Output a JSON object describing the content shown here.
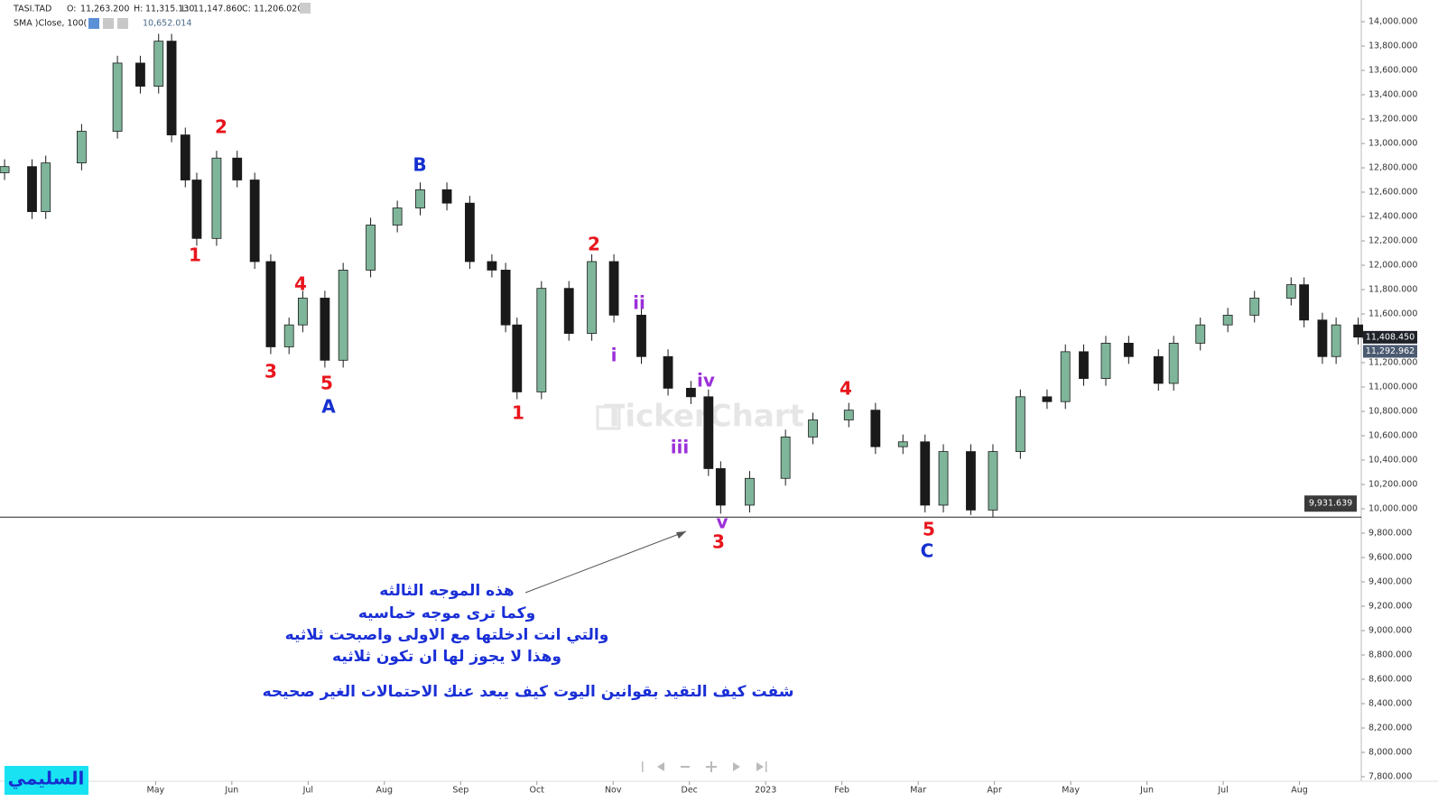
{
  "chart_data": {
    "type": "candlestick",
    "title": "TASI.TAD",
    "ohlc": [
      {
        "key": "O:",
        "label": "11,263.200"
      },
      {
        "key": "H:",
        "label": "11,315.130"
      },
      {
        "key": "L:",
        "label": "11,147.860"
      },
      {
        "key": "C:",
        "label": "11,206.020"
      }
    ],
    "indicator": {
      "name": "SMA )Close, 100(",
      "label": "10,652.014"
    },
    "up_color": "#7fb59a",
    "down_color": "#1a1a1a",
    "x": [
      -0.98,
      -0.62,
      -0.44,
      0.03,
      0.5,
      0.8,
      1.04,
      1.21,
      1.39,
      1.54,
      1.8,
      2.07,
      2.3,
      2.51,
      2.75,
      2.93,
      3.22,
      3.46,
      3.82,
      4.17,
      4.47,
      4.82,
      5.12,
      5.41,
      5.59,
      5.74,
      6.06,
      6.42,
      6.72,
      7.01,
      7.37,
      7.72,
      8.02,
      8.25,
      8.41,
      8.79,
      9.26,
      9.62,
      10.09,
      10.44,
      10.8,
      11.09,
      11.33,
      11.69,
      11.98,
      12.34,
      12.69,
      12.93,
      13.17,
      13.46,
      13.76,
      14.15,
      14.35,
      14.7,
      15.06,
      15.41,
      15.89,
      16.06,
      16.3,
      16.48,
      16.77
    ],
    "open": [
      12760,
      12810,
      12440,
      12840,
      13100,
      13660,
      13470,
      13840,
      13070,
      12700,
      12220,
      12880,
      12700,
      12030,
      11330,
      11510,
      11730,
      11220,
      11960,
      12330,
      12470,
      12620,
      12510,
      12030,
      11960,
      11510,
      10960,
      11810,
      11440,
      12030,
      11590,
      11250,
      10990,
      10920,
      10330,
      10030,
      10250,
      10590,
      10730,
      10810,
      10510,
      10550,
      10030,
      10470,
      9990,
      10470,
      10920,
      10880,
      11290,
      11070,
      11360,
      11250,
      11030,
      11360,
      11510,
      11590,
      11730,
      11840,
      11550,
      11250,
      11510
    ],
    "high": [
      12870,
      12870,
      12900,
      13160,
      13720,
      13720,
      13900,
      13900,
      13130,
      12760,
      12940,
      12940,
      12760,
      12090,
      11570,
      11790,
      11790,
      12020,
      12390,
      12530,
      12680,
      12680,
      12570,
      12090,
      12020,
      11570,
      11870,
      11870,
      12090,
      12090,
      11650,
      11310,
      11050,
      10980,
      10390,
      10310,
      10650,
      10790,
      10870,
      10870,
      10610,
      10610,
      10530,
      10530,
      10530,
      10980,
      10980,
      11350,
      11350,
      11420,
      11420,
      11310,
      11420,
      11570,
      11650,
      11790,
      11900,
      11900,
      11610,
      11570,
      11570
    ],
    "low": [
      12700,
      12380,
      12380,
      12780,
      13040,
      13410,
      13410,
      13010,
      12640,
      12160,
      12160,
      12640,
      11970,
      11270,
      11270,
      11450,
      11160,
      11160,
      11900,
      12270,
      12410,
      12450,
      11970,
      11900,
      11450,
      10900,
      10900,
      11380,
      11380,
      11530,
      11190,
      10930,
      10860,
      10270,
      9960,
      9970,
      10190,
      10530,
      10670,
      10450,
      10450,
      9970,
      9970,
      9950,
      9930,
      10410,
      10820,
      10820,
      11010,
      11010,
      11190,
      10970,
      10970,
      11300,
      11450,
      11530,
      11670,
      11490,
      11190,
      11190,
      11350
    ],
    "close": [
      12810,
      12440,
      12840,
      13100,
      13660,
      13470,
      13840,
      13070,
      12700,
      12220,
      12880,
      12700,
      12030,
      11330,
      11510,
      11730,
      11220,
      11960,
      12330,
      12470,
      12620,
      12510,
      12030,
      11960,
      11510,
      10960,
      11810,
      11440,
      12030,
      11590,
      11250,
      10990,
      10920,
      10330,
      10030,
      10250,
      10590,
      10730,
      10810,
      10510,
      10550,
      10030,
      10470,
      9990,
      10470,
      10920,
      10880,
      11290,
      11070,
      11360,
      11250,
      11030,
      11360,
      11510,
      11590,
      11730,
      11840,
      11550,
      11250,
      11510,
      11410
    ],
    "xlim": [
      -1.04,
      16.81
    ],
    "xticks": [
      {
        "value": 1,
        "label": "May"
      },
      {
        "value": 2,
        "label": "Jun"
      },
      {
        "value": 3,
        "label": "Jul"
      },
      {
        "value": 4,
        "label": "Aug"
      },
      {
        "value": 5,
        "label": "Sep"
      },
      {
        "value": 6,
        "label": "Oct"
      },
      {
        "value": 7,
        "label": "Nov"
      },
      {
        "value": 8,
        "label": "Dec"
      },
      {
        "value": 9,
        "label": "2023"
      },
      {
        "value": 10,
        "label": "Feb"
      },
      {
        "value": 11,
        "label": "Mar"
      },
      {
        "value": 12,
        "label": "Apr"
      },
      {
        "value": 13,
        "label": "May"
      },
      {
        "value": 14,
        "label": "Jun"
      },
      {
        "value": 15,
        "label": "Jul"
      },
      {
        "value": 16,
        "label": "Aug"
      }
    ],
    "ylim": [
      7763,
      14178
    ],
    "yticks": [
      {
        "value": 7800,
        "label": "7,800.000"
      },
      {
        "value": 8000,
        "label": "8,000.000"
      },
      {
        "value": 8200,
        "label": "8,200.000"
      },
      {
        "value": 8400,
        "label": "8,400.000"
      },
      {
        "value": 8600,
        "label": "8,600.000"
      },
      {
        "value": 8800,
        "label": "8,800.000"
      },
      {
        "value": 9000,
        "label": "9,000.000"
      },
      {
        "value": 9200,
        "label": "9,200.000"
      },
      {
        "value": 9400,
        "label": "9,400.000"
      },
      {
        "value": 9600,
        "label": "9,600.000"
      },
      {
        "value": 9800,
        "label": "9,800.000"
      },
      {
        "value": 10000,
        "label": "10,000.000"
      },
      {
        "value": 10200,
        "label": "10,200.000"
      },
      {
        "value": 10400,
        "label": "10,400.000"
      },
      {
        "value": 10600,
        "label": "10,600.000"
      },
      {
        "value": 10800,
        "label": "10,800.000"
      },
      {
        "value": 11000,
        "label": "11,000.000"
      },
      {
        "value": 11200,
        "label": "11,200.000"
      },
      {
        "value": 11400,
        "label": "11,400.000"
      },
      {
        "value": 11600,
        "label": "11,600.000"
      },
      {
        "value": 11800,
        "label": "11,800.000"
      },
      {
        "value": 12000,
        "label": "12,000.000"
      },
      {
        "value": 12200,
        "label": "12,200.000"
      },
      {
        "value": 12400,
        "label": "12,400.000"
      },
      {
        "value": 12600,
        "label": "12,600.000"
      },
      {
        "value": 12800,
        "label": "12,800.000"
      },
      {
        "value": 13000,
        "label": "13,000.000"
      },
      {
        "value": 13200,
        "label": "13,200.000"
      },
      {
        "value": 13400,
        "label": "13,400.000"
      },
      {
        "value": 13600,
        "label": "13,600.000"
      },
      {
        "value": 13800,
        "label": "13,800.000"
      },
      {
        "value": 14000,
        "label": "14,000.000"
      }
    ],
    "price_tags": [
      {
        "value": 11408.45,
        "label": "11,408.450",
        "color": "#1f2329"
      },
      {
        "value": 11292.962,
        "label": "11,292.962",
        "color": "#4b5a70"
      }
    ],
    "hline": {
      "value": 9931.639,
      "label": "9,931.639"
    },
    "wave_labels": [
      {
        "text": "1",
        "color": "#e8141c"
      },
      {
        "text": "2",
        "color": "#e8141c"
      },
      {
        "text": "3",
        "color": "#e8141c"
      },
      {
        "text": "4",
        "color": "#e8141c"
      },
      {
        "text": "5",
        "color": "#e8141c"
      },
      {
        "text": "A",
        "color": "#1530d0"
      },
      {
        "text": "B",
        "color": "#1530d0"
      },
      {
        "text": "1",
        "color": "#e8141c"
      },
      {
        "text": "2",
        "color": "#e8141c"
      },
      {
        "text": "i",
        "color": "#9b30d9"
      },
      {
        "text": "ii",
        "color": "#9b30d9"
      },
      {
        "text": "iii",
        "color": "#9b30d9"
      },
      {
        "text": "iv",
        "color": "#9b30d9"
      },
      {
        "text": "v",
        "color": "#9b30d9"
      },
      {
        "text": "3",
        "color": "#e8141c"
      },
      {
        "text": "4",
        "color": "#e8141c"
      },
      {
        "text": "5",
        "color": "#e8141c"
      },
      {
        "text": "C",
        "color": "#1530d0"
      }
    ],
    "notes": [
      "هذه الموجه الثالثه",
      "وكما ترى موجه خماسيه",
      "والتي انت ادخلتها مع الاولى  واصبحت ثلاثيه",
      "وهذا لا يجوز لها ان تكون ثلاثيه",
      "شفت كيف التقيد بقوانين اليوت كيف يبعد عنك الاحتمالات الغير صحيحه"
    ],
    "watermark": "TickerChart",
    "signature": "السليمي"
  }
}
